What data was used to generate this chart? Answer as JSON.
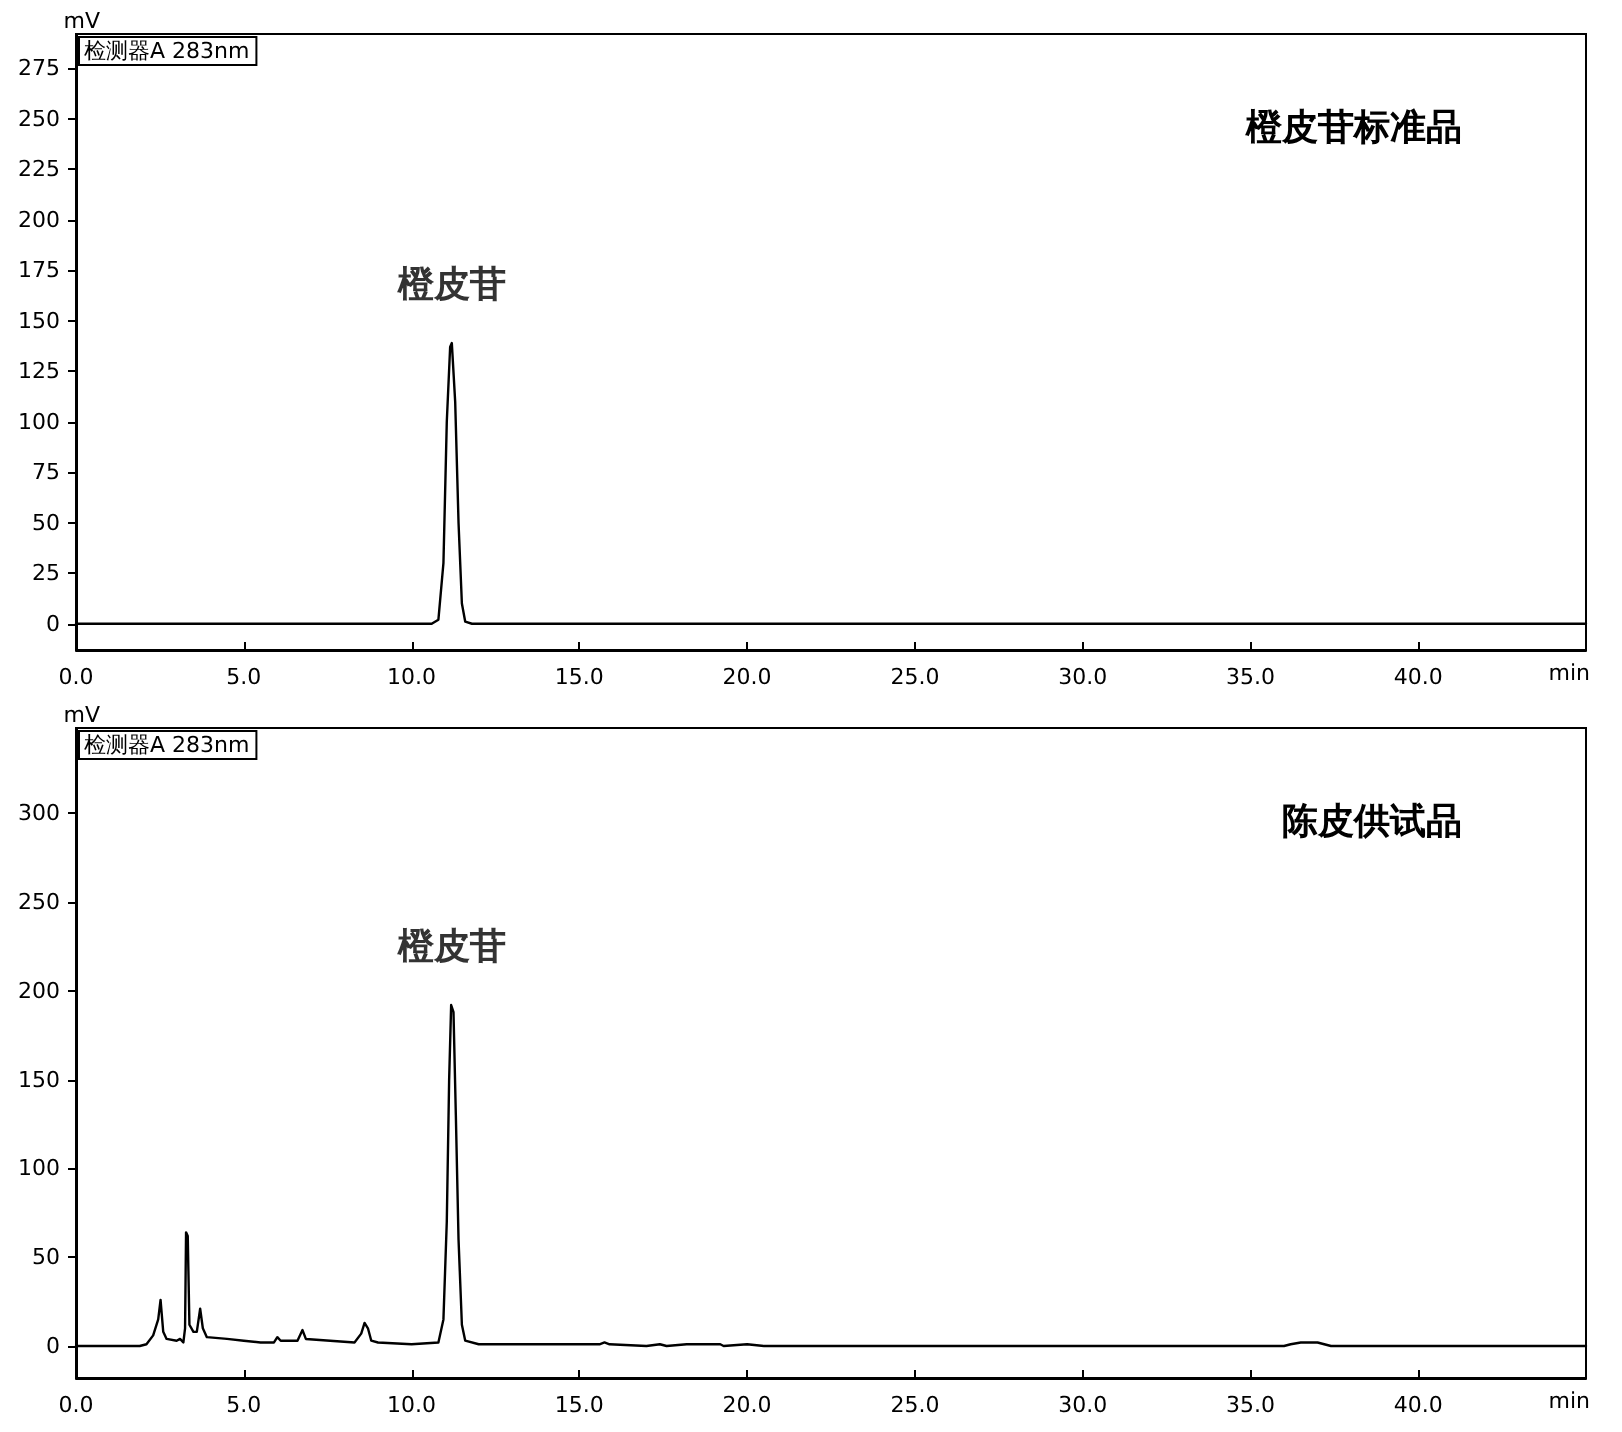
{
  "chart_data": [
    {
      "type": "line",
      "xlabel": "min",
      "ylabel": "mV",
      "grid": false,
      "marker": "none",
      "line_style": "solid",
      "xlim": [
        0,
        45
      ],
      "xticks": [
        {
          "value": 0,
          "label": "0.0"
        },
        {
          "value": 5,
          "label": "5.0"
        },
        {
          "value": 10,
          "label": "10.0"
        },
        {
          "value": 15,
          "label": "15.0"
        },
        {
          "value": 20,
          "label": "20.0"
        },
        {
          "value": 25,
          "label": "25.0"
        },
        {
          "value": 30,
          "label": "30.0"
        },
        {
          "value": 35,
          "label": "35.0"
        },
        {
          "value": 40,
          "label": "40.0"
        }
      ],
      "ylim": [
        -13,
        292
      ],
      "yticks": [
        0,
        25,
        50,
        75,
        100,
        125,
        150,
        175,
        200,
        225,
        250,
        275
      ],
      "annotations": [
        "检测器A 283nm",
        "橙皮苷标准品",
        {
          "text": "橙皮苷",
          "x": 11.2,
          "y": 139
        }
      ],
      "series": [
        {
          "color": "#000000",
          "x": [
            0,
            10.6,
            10.8,
            10.95,
            11.05,
            11.15,
            11.2,
            11.3,
            11.4,
            11.5,
            11.6,
            11.8,
            45
          ],
          "values": [
            0,
            0,
            2,
            30,
            100,
            137,
            139,
            110,
            50,
            10,
            1,
            0,
            0
          ]
        }
      ]
    },
    {
      "type": "line",
      "xlabel": "min",
      "ylabel": "mV",
      "grid": false,
      "marker": "none",
      "line_style": "solid",
      "xlim": [
        0,
        45
      ],
      "xticks": [
        {
          "value": 0,
          "label": "0.0"
        },
        {
          "value": 5,
          "label": "5.0"
        },
        {
          "value": 10,
          "label": "10.0"
        },
        {
          "value": 15,
          "label": "15.0"
        },
        {
          "value": 20,
          "label": "20.0"
        },
        {
          "value": 25,
          "label": "25.0"
        },
        {
          "value": 30,
          "label": "30.0"
        },
        {
          "value": 35,
          "label": "35.0"
        },
        {
          "value": 40,
          "label": "40.0"
        }
      ],
      "ylim": [
        -18,
        348
      ],
      "yticks": [
        0,
        50,
        100,
        150,
        200,
        250,
        300
      ],
      "annotations": [
        "检测器A 283nm",
        "陈皮供试品",
        {
          "text": "橙皮苷",
          "x": 11.2,
          "y": 192
        }
      ],
      "series": [
        {
          "color": "#000000",
          "x": [
            0,
            1.9,
            2.1,
            2.3,
            2.45,
            2.52,
            2.6,
            2.7,
            3.0,
            3.1,
            3.2,
            3.25,
            3.28,
            3.33,
            3.38,
            3.5,
            3.6,
            3.7,
            3.78,
            3.9,
            4.5,
            5.0,
            5.5,
            5.9,
            6.0,
            6.1,
            6.6,
            6.75,
            6.85,
            8.3,
            8.5,
            8.6,
            8.7,
            8.8,
            9.0,
            10.0,
            10.8,
            10.95,
            11.05,
            11.12,
            11.18,
            11.25,
            11.32,
            11.4,
            11.5,
            11.6,
            12,
            15,
            15.6,
            15.75,
            15.9,
            17,
            17.4,
            17.6,
            18.2,
            19.2,
            19.3,
            20.0,
            20.5,
            36,
            36.2,
            36.5,
            37,
            37.4,
            45
          ],
          "values": [
            0,
            0,
            1,
            6,
            15,
            26,
            8,
            4,
            3,
            4,
            2,
            10,
            64,
            62,
            12,
            8,
            8,
            21,
            10,
            5,
            4,
            3,
            2,
            2,
            5,
            3,
            3,
            9,
            4,
            2,
            7,
            13,
            10,
            3,
            2,
            1,
            2,
            15,
            70,
            150,
            192,
            188,
            130,
            60,
            12,
            3,
            1,
            1,
            1,
            2,
            1,
            0,
            1,
            0,
            1,
            1,
            0,
            1,
            0,
            0,
            1,
            2,
            2,
            0,
            0
          ]
        }
      ]
    }
  ]
}
